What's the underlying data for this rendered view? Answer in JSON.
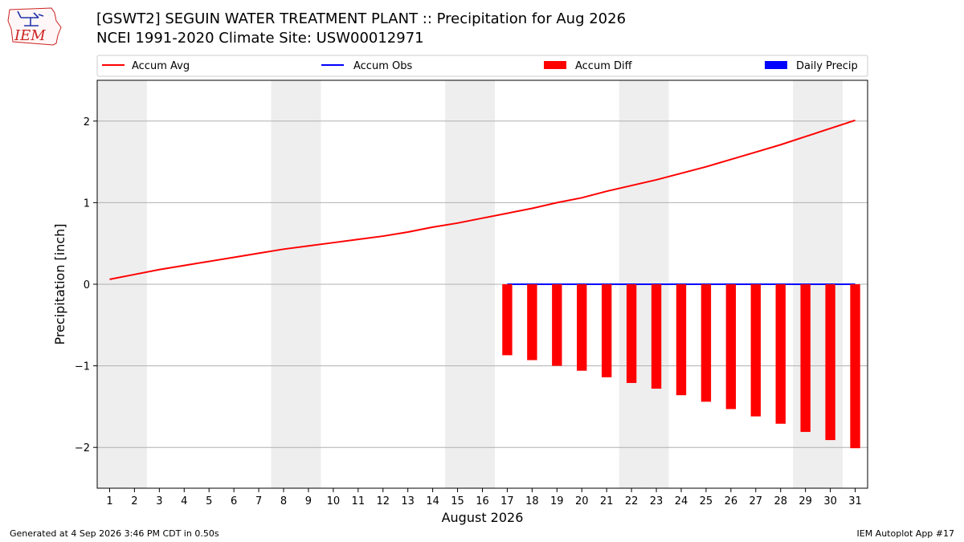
{
  "header": {
    "logo_text": "IEM",
    "title_line1": "[GSWT2] SEGUIN WATER TREATMENT PLANT :: Precipitation for Aug 2026",
    "title_line2": "NCEI 1991-2020 Climate Site: USW00012971"
  },
  "footer": {
    "left": "Generated at 4 Sep 2026 3:46 PM CDT in 0.50s",
    "right": "IEM Autoplot App #17"
  },
  "chart_data": {
    "type": "bar",
    "xlabel": "August 2026",
    "ylabel": "Precipitation [inch]",
    "xlim": [
      0.5,
      31.5
    ],
    "ylim": [
      -2.5,
      2.5
    ],
    "yticks": [
      -2,
      -1,
      0,
      1,
      2
    ],
    "ytick_labels": [
      "−2",
      "−1",
      "0",
      "1",
      "2"
    ],
    "grid": "horizontal",
    "legend_placement": "top",
    "weekend_shading": [
      [
        1,
        2
      ],
      [
        8,
        9
      ],
      [
        15,
        16
      ],
      [
        22,
        23
      ],
      [
        29,
        30
      ]
    ],
    "days": [
      1,
      2,
      3,
      4,
      5,
      6,
      7,
      8,
      9,
      10,
      11,
      12,
      13,
      14,
      15,
      16,
      17,
      18,
      19,
      20,
      21,
      22,
      23,
      24,
      25,
      26,
      27,
      28,
      29,
      30,
      31
    ],
    "series": [
      {
        "name": "Accum Avg",
        "kind": "line",
        "color": "#ff0000",
        "values": [
          0.06,
          0.12,
          0.18,
          0.23,
          0.28,
          0.33,
          0.38,
          0.43,
          0.47,
          0.51,
          0.55,
          0.59,
          0.64,
          0.7,
          0.75,
          0.81,
          0.87,
          0.93,
          1.0,
          1.06,
          1.14,
          1.21,
          1.28,
          1.36,
          1.44,
          1.53,
          1.62,
          1.71,
          1.81,
          1.91,
          2.01
        ]
      },
      {
        "name": "Accum Obs",
        "kind": "line",
        "color": "#0000ff",
        "start_day": 17,
        "values": [
          0,
          0,
          0,
          0,
          0,
          0,
          0,
          0,
          0,
          0,
          0,
          0,
          0,
          0,
          0
        ]
      },
      {
        "name": "Accum Diff",
        "kind": "bar",
        "color": "#ff0000",
        "start_day": 17,
        "values": [
          -0.87,
          -0.93,
          -1.0,
          -1.06,
          -1.14,
          -1.21,
          -1.28,
          -1.36,
          -1.44,
          -1.53,
          -1.62,
          -1.71,
          -1.81,
          -1.91,
          -2.01
        ]
      },
      {
        "name": "Daily Precip",
        "kind": "bar",
        "color": "#0000ff",
        "start_day": 17,
        "values": [
          0,
          0,
          0,
          0,
          0,
          0,
          0,
          0,
          0,
          0,
          0,
          0,
          0,
          0,
          0
        ]
      }
    ]
  }
}
